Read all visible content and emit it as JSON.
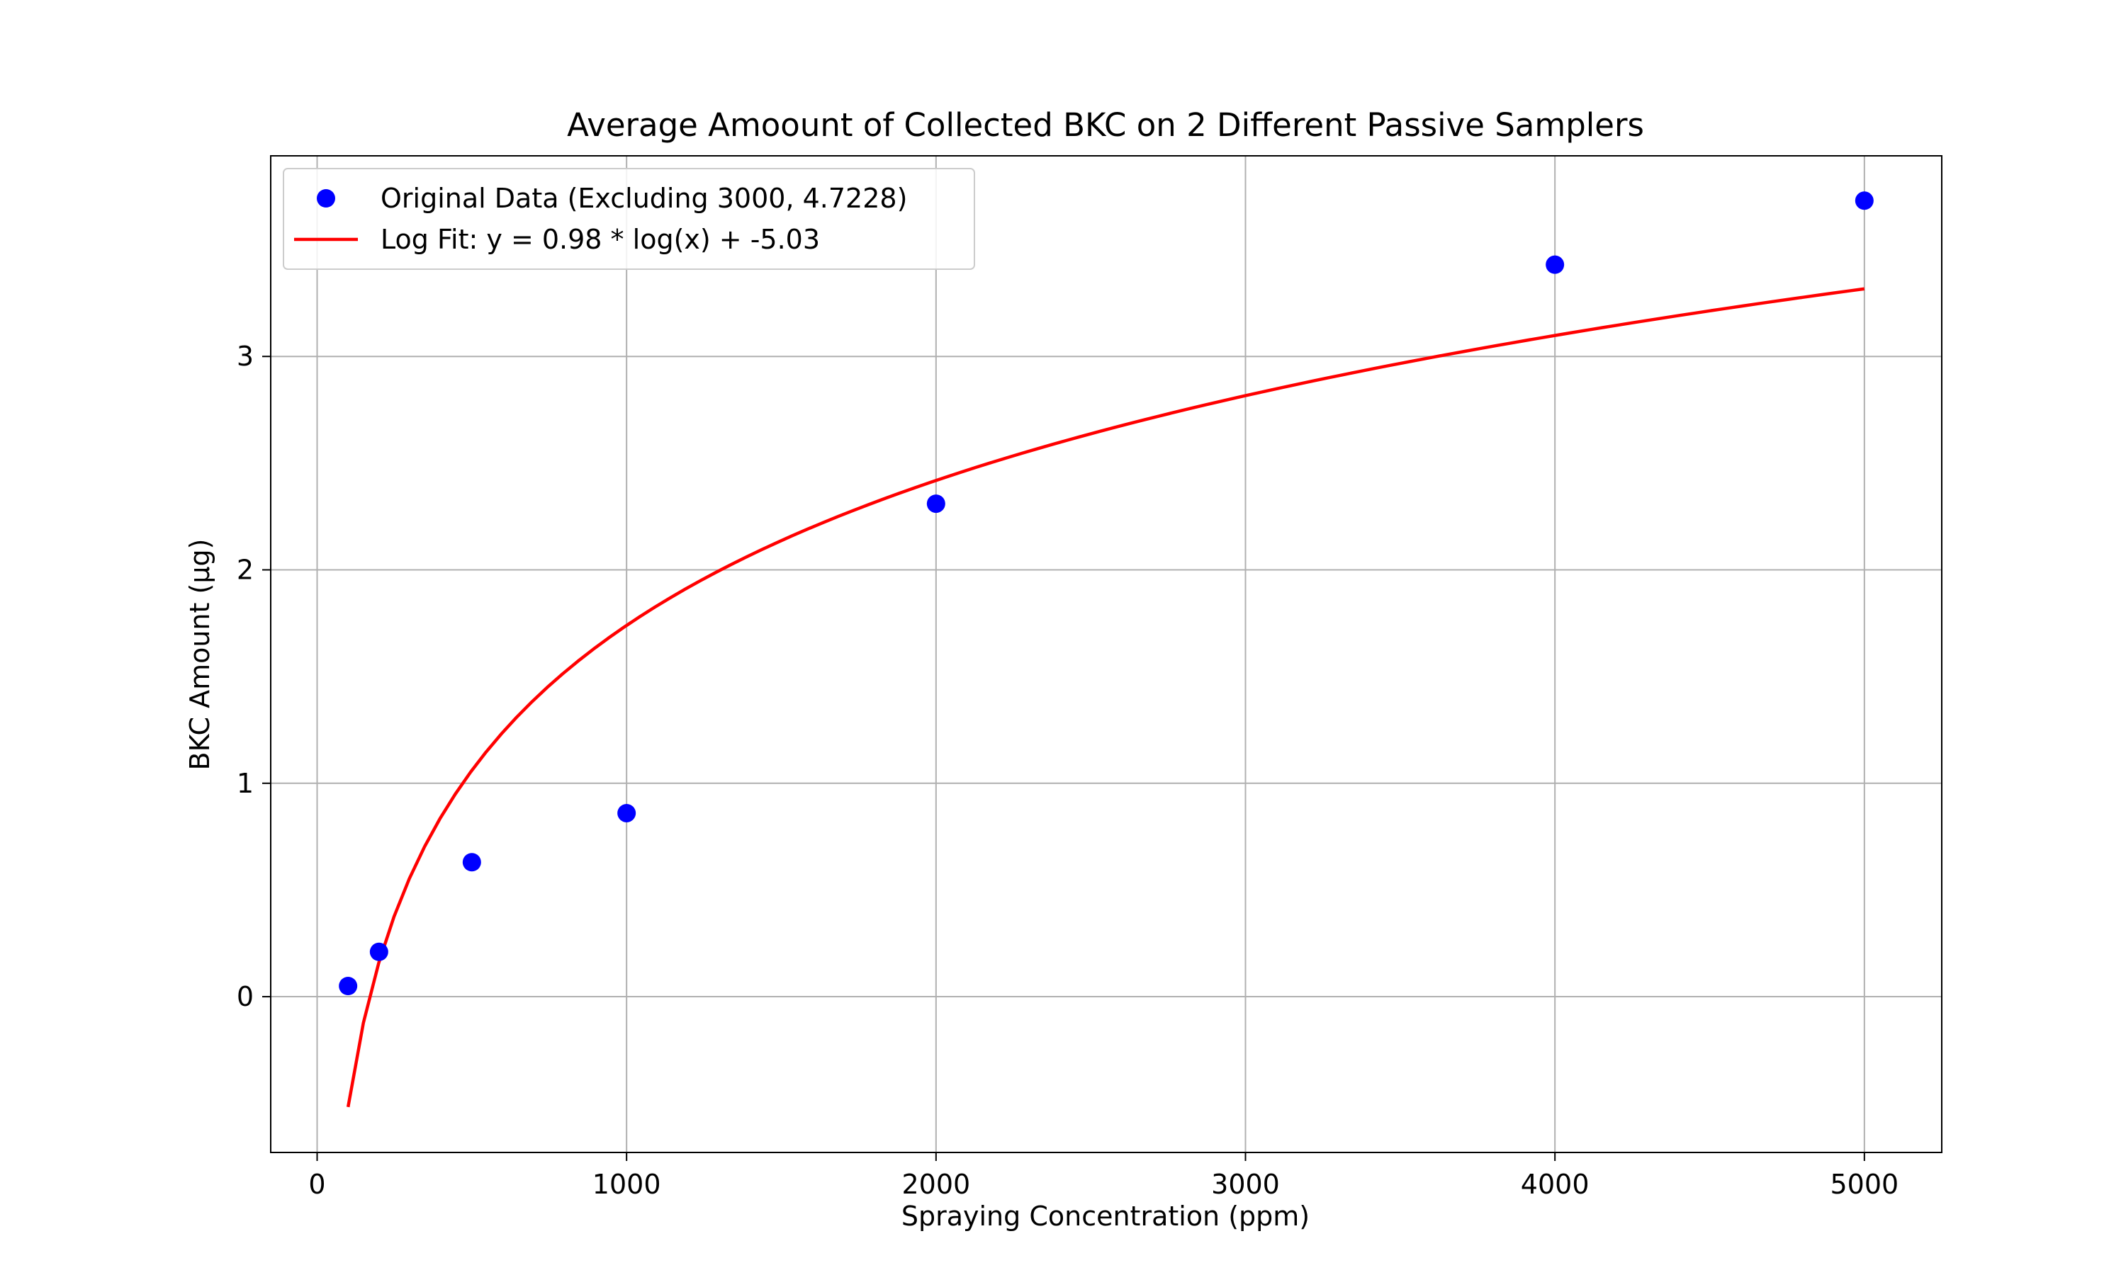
{
  "colors": {
    "scatter": "#0000ff",
    "fit_line": "#ff0000",
    "grid": "#b0b0b0",
    "axes": "#000000"
  },
  "chart_data": {
    "type": "scatter",
    "title": "Average Amoount of Collected BKC on 2 Different Passive Samplers",
    "xlabel": "Spraying Concentration (ppm)",
    "ylabel": "BKC Amount (µg)",
    "xlim": [
      -150,
      5250
    ],
    "ylim": [
      -0.73,
      3.94
    ],
    "xticks": [
      0,
      1000,
      2000,
      3000,
      4000,
      5000
    ],
    "xtick_labels": [
      "0",
      "1000",
      "2000",
      "3000",
      "4000",
      "5000"
    ],
    "yticks": [
      0,
      1,
      2,
      3
    ],
    "ytick_labels": [
      "0",
      "1",
      "2",
      "3"
    ],
    "grid": true,
    "legend_position": "upper-left",
    "series": [
      {
        "name": "Original Data (Excluding 3000, 4.7228)",
        "kind": "scatter",
        "x": [
          100,
          200,
          500,
          1000,
          2000,
          4000,
          5000
        ],
        "y": [
          0.05,
          0.21,
          0.63,
          0.86,
          2.31,
          3.43,
          3.73
        ]
      },
      {
        "name": "Log Fit: y = 0.98 * log(x) + -5.03",
        "kind": "line",
        "fit": {
          "a": 0.98,
          "b": -5.03,
          "x_from": 100,
          "x_to": 5000
        }
      }
    ]
  }
}
